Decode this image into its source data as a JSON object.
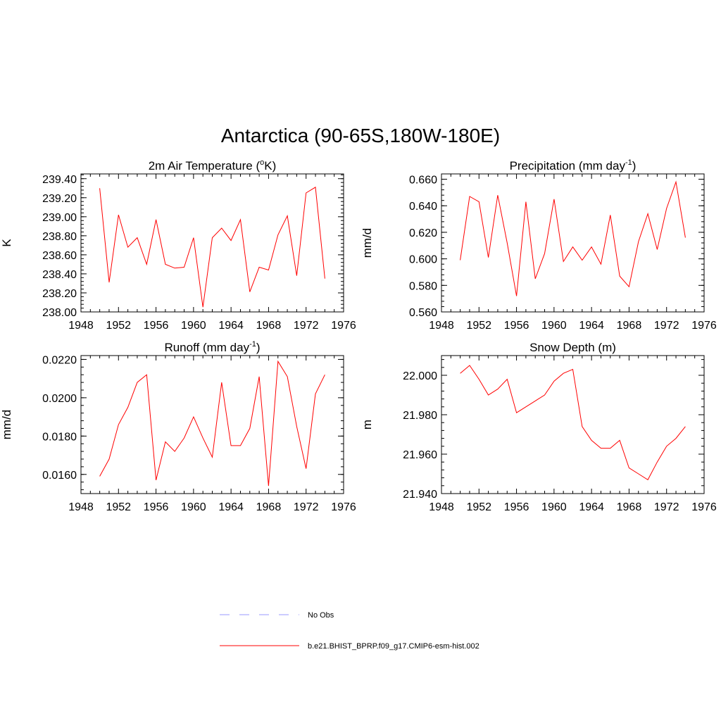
{
  "figure": {
    "title": "Antarctica (90-65S,180W-180E)"
  },
  "legend": {
    "entries": [
      {
        "label": "No Obs",
        "color": "#9999ff",
        "style": "dashed"
      },
      {
        "label": "b.e21.BHIST_BPRP.f09_g17.CMIP6-esm-hist.002",
        "color": "#ff0000",
        "style": "solid"
      }
    ]
  },
  "chart_data": [
    {
      "type": "line",
      "title": "2m Air Temperature (",
      "title_sup": "o",
      "title_end": "K)",
      "ylabel": "K",
      "xlim": [
        1948,
        1976
      ],
      "ylim": [
        238.0,
        239.45
      ],
      "xticks": [
        1948,
        1952,
        1956,
        1960,
        1964,
        1968,
        1972,
        1976
      ],
      "yticks": [
        "238.00",
        "238.20",
        "238.40",
        "238.60",
        "238.80",
        "239.00",
        "239.20",
        "239.40"
      ],
      "yticks_values": [
        238.0,
        238.2,
        238.4,
        238.6,
        238.8,
        239.0,
        239.2,
        239.4
      ],
      "x": [
        1950,
        1951,
        1952,
        1953,
        1954,
        1955,
        1956,
        1957,
        1958,
        1959,
        1960,
        1961,
        1962,
        1963,
        1964,
        1965,
        1966,
        1967,
        1968,
        1969,
        1970,
        1971,
        1972,
        1973,
        1974
      ],
      "series": [
        {
          "color": "#ff0000",
          "values": [
            239.3,
            238.31,
            239.02,
            238.68,
            238.78,
            238.5,
            238.97,
            238.5,
            238.46,
            238.47,
            238.78,
            238.05,
            238.78,
            238.88,
            238.75,
            238.97,
            238.21,
            238.47,
            238.44,
            238.81,
            239.01,
            238.38,
            239.25,
            239.31,
            238.35
          ]
        }
      ]
    },
    {
      "type": "line",
      "title": "Precipitation (mm day",
      "title_sup": "-1",
      "title_end": ")",
      "ylabel": "mm/d",
      "xlim": [
        1948,
        1976
      ],
      "ylim": [
        0.56,
        0.664
      ],
      "xticks": [
        1948,
        1952,
        1956,
        1960,
        1964,
        1968,
        1972,
        1976
      ],
      "yticks": [
        "0.560",
        "0.580",
        "0.600",
        "0.620",
        "0.640",
        "0.660"
      ],
      "yticks_values": [
        0.56,
        0.58,
        0.6,
        0.62,
        0.64,
        0.66
      ],
      "x": [
        1950,
        1951,
        1952,
        1953,
        1954,
        1955,
        1956,
        1957,
        1958,
        1959,
        1960,
        1961,
        1962,
        1963,
        1964,
        1965,
        1966,
        1967,
        1968,
        1969,
        1970,
        1971,
        1972,
        1973,
        1974
      ],
      "series": [
        {
          "color": "#ff0000",
          "values": [
            0.599,
            0.647,
            0.643,
            0.601,
            0.648,
            0.612,
            0.572,
            0.643,
            0.585,
            0.604,
            0.645,
            0.598,
            0.609,
            0.599,
            0.609,
            0.596,
            0.633,
            0.587,
            0.579,
            0.613,
            0.634,
            0.607,
            0.638,
            0.658,
            0.616
          ]
        }
      ]
    },
    {
      "type": "line",
      "title": "Runoff (mm day",
      "title_sup": "-1",
      "title_end": ")",
      "ylabel": "mm/d",
      "xlim": [
        1948,
        1976
      ],
      "ylim": [
        0.015,
        0.0222
      ],
      "xticks": [
        1948,
        1952,
        1956,
        1960,
        1964,
        1968,
        1972,
        1976
      ],
      "yticks": [
        "0.0160",
        "0.0180",
        "0.0200",
        "0.0220"
      ],
      "yticks_values": [
        0.016,
        0.018,
        0.02,
        0.022
      ],
      "x": [
        1950,
        1951,
        1952,
        1953,
        1954,
        1955,
        1956,
        1957,
        1958,
        1959,
        1960,
        1961,
        1962,
        1963,
        1964,
        1965,
        1966,
        1967,
        1968,
        1969,
        1970,
        1971,
        1972,
        1973,
        1974
      ],
      "series": [
        {
          "color": "#ff0000",
          "values": [
            0.0159,
            0.0168,
            0.0186,
            0.0195,
            0.0208,
            0.0212,
            0.0157,
            0.0177,
            0.0172,
            0.0179,
            0.019,
            0.0179,
            0.0169,
            0.0208,
            0.0175,
            0.0175,
            0.0184,
            0.0211,
            0.0154,
            0.0219,
            0.0211,
            0.0185,
            0.0163,
            0.0202,
            0.0212
          ]
        }
      ]
    },
    {
      "type": "line",
      "title": "Snow Depth (m)",
      "title_sup": "",
      "title_end": "",
      "ylabel": "m",
      "xlim": [
        1948,
        1976
      ],
      "ylim": [
        21.94,
        22.01
      ],
      "xticks": [
        1948,
        1952,
        1956,
        1960,
        1964,
        1968,
        1972,
        1976
      ],
      "yticks": [
        "21.940",
        "21.960",
        "21.980",
        "22.000"
      ],
      "yticks_values": [
        21.94,
        21.96,
        21.98,
        22.0
      ],
      "x": [
        1950,
        1951,
        1952,
        1953,
        1954,
        1955,
        1956,
        1957,
        1958,
        1959,
        1960,
        1961,
        1962,
        1963,
        1964,
        1965,
        1966,
        1967,
        1968,
        1969,
        1970,
        1971,
        1972,
        1973,
        1974
      ],
      "series": [
        {
          "color": "#ff0000",
          "values": [
            22.001,
            22.005,
            21.998,
            21.99,
            21.993,
            21.998,
            21.981,
            21.984,
            21.987,
            21.99,
            21.997,
            22.001,
            22.003,
            21.974,
            21.967,
            21.963,
            21.963,
            21.967,
            21.953,
            21.95,
            21.947,
            21.956,
            21.964,
            21.968,
            21.974
          ]
        }
      ]
    }
  ]
}
